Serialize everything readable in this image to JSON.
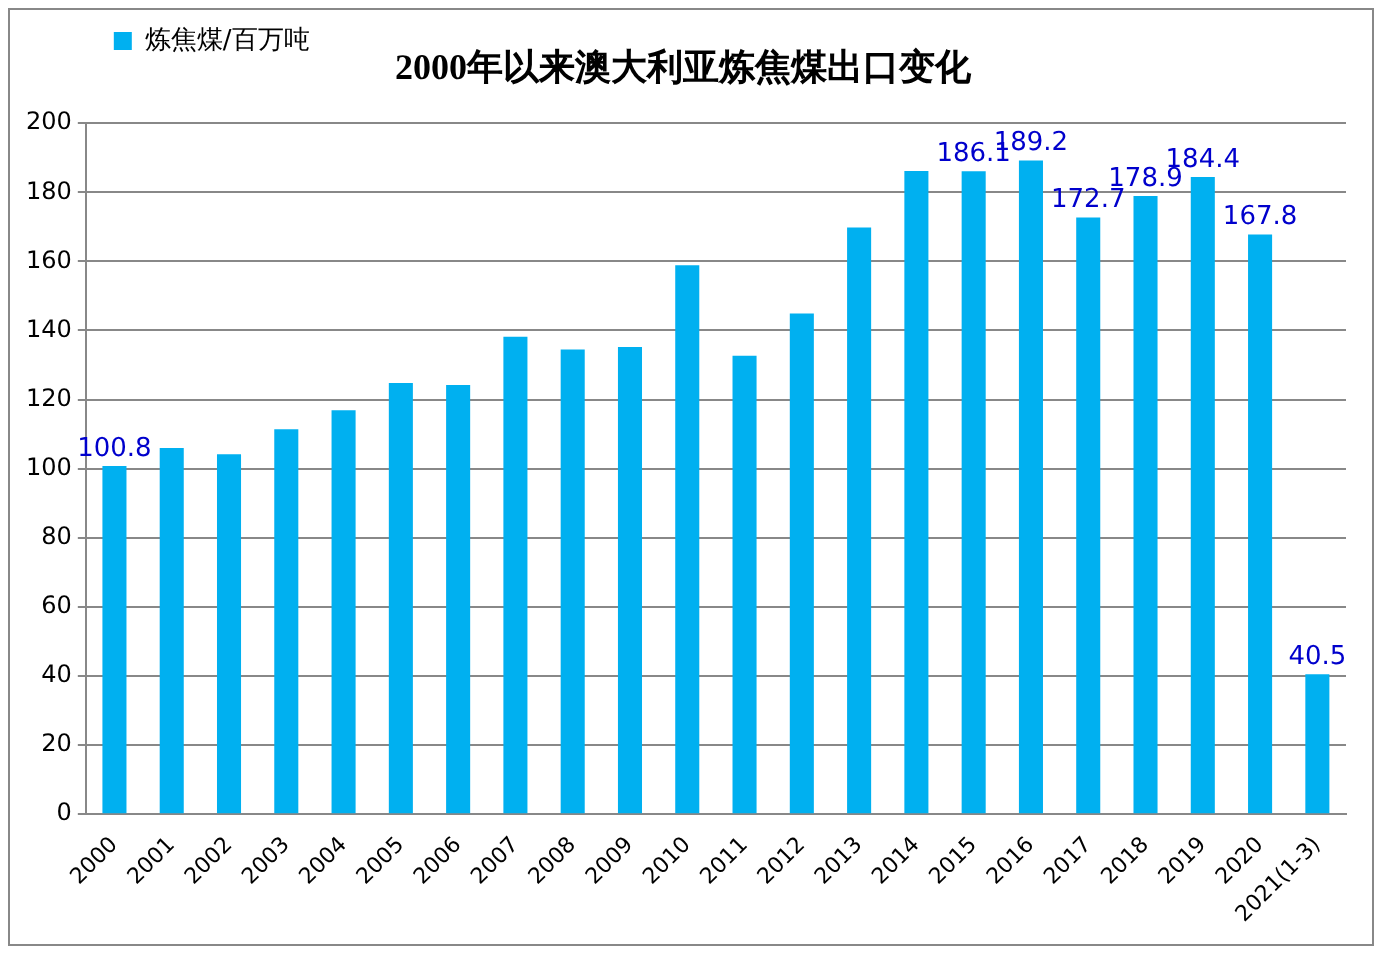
{
  "chart_data": {
    "type": "bar",
    "title": "2000年以来澳大利亚炼焦煤出口变化",
    "categories": [
      "2000",
      "2001",
      "2002",
      "2003",
      "2004",
      "2005",
      "2006",
      "2007",
      "2008",
      "2009",
      "2010",
      "2011",
      "2012",
      "2013",
      "2014",
      "2015",
      "2016",
      "2017",
      "2018",
      "2019",
      "2020",
      "2021(1-3)"
    ],
    "series": [
      {
        "name": "炼焦煤/百万吨",
        "color": "#00b0f0",
        "values": [
          100.8,
          106,
          104.2,
          111.4,
          116.9,
          124.8,
          124.2,
          138.2,
          134.5,
          135.2,
          158.9,
          132.7,
          144.9,
          169.8,
          186.2,
          186.1,
          189.2,
          172.7,
          178.9,
          184.4,
          167.8,
          40.5
        ],
        "value_labels": [
          "100.8",
          null,
          null,
          null,
          null,
          null,
          null,
          null,
          null,
          null,
          null,
          null,
          null,
          null,
          null,
          "186.1",
          "189.2",
          "172.7",
          "178.9",
          "184.4",
          "167.8",
          "40.5"
        ]
      }
    ],
    "ylim": [
      0,
      200
    ],
    "yticks": [
      0,
      20,
      40,
      60,
      80,
      100,
      120,
      140,
      160,
      180,
      200
    ],
    "grid": "y",
    "legend": "top left"
  }
}
